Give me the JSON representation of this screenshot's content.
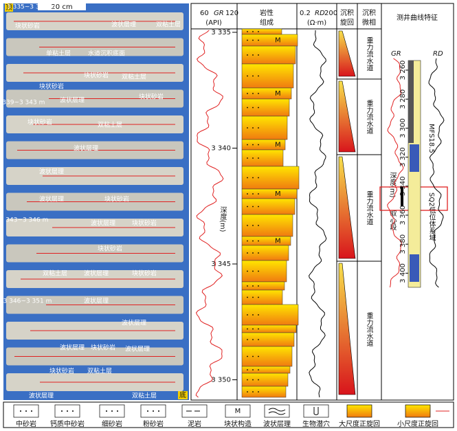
{
  "core": {
    "top": "顶",
    "bottom": "底",
    "scale": "20 cm",
    "labels": [
      "3 335~3 339 m",
      "块状砂岩",
      "波状层理",
      "双粘土层",
      "单粘土层",
      "水道沉积底面",
      "块状砂岩",
      "双粘土层",
      "块状砂岩",
      "块状砂岩",
      "波状层理",
      "3 339~3 343 m",
      "块状砂岩",
      "双粘土层",
      "波状层理",
      "波状层理",
      "波状层理",
      "块状砂岩",
      "3 343~3 346 m",
      "波状层理",
      "块状砂岩",
      "块状砂岩",
      "双粘土层",
      "波状层理",
      "块状砂岩",
      "3 346~3 351 m",
      "波状层理",
      "波状层理",
      "波状层理",
      "块状砂岩",
      "波状层理",
      "块状砂岩",
      "双粘土层",
      "波状层理",
      "双粘土层"
    ]
  },
  "gr_header": {
    "min": "60",
    "name": "GR",
    "max": "120",
    "unit": "(API)"
  },
  "depth_label": "深度(m)",
  "depth_ticks": [
    {
      "value": 3335,
      "label": "3 335"
    },
    {
      "value": 3340,
      "label": "3 340"
    },
    {
      "value": 3345,
      "label": "3 345"
    },
    {
      "value": 3350,
      "label": "3 350"
    }
  ],
  "lithology_header": [
    "岩性",
    "组成"
  ],
  "rd_header": {
    "min": "0.2",
    "name": "RD",
    "max": "200",
    "unit": "(Ω·m)"
  },
  "cycle_header": [
    "沉积",
    "旋回"
  ],
  "facies_header": [
    "沉积",
    "微相"
  ],
  "facies": [
    "重力流水道",
    "重力流水道",
    "重力流水道",
    "重力流水道"
  ],
  "log_panel": {
    "title": "测井曲线特征",
    "gr": "GR",
    "rd": "RD",
    "depth_label": "深度(m)",
    "depth_ticks": [
      {
        "value": 3260,
        "label": "3 260"
      },
      {
        "value": 3280,
        "label": "3 280"
      },
      {
        "value": 3300,
        "label": "3 300"
      },
      {
        "value": 3320,
        "label": "3 320"
      },
      {
        "value": 3340,
        "label": "3 340"
      },
      {
        "value": 3360,
        "label": "3 360"
      },
      {
        "value": 3380,
        "label": "3 380"
      },
      {
        "value": 3400,
        "label": "3 400"
      }
    ],
    "core_interval": "取心段",
    "mfs": "MFS18.5",
    "systems_tract": "SQ2低位体系域"
  },
  "legend": [
    {
      "label": "中砂岩"
    },
    {
      "label": "钙质中砂岩"
    },
    {
      "label": "细砂岩"
    },
    {
      "label": "粉砂岩"
    },
    {
      "label": "泥岩"
    },
    {
      "label": "块状构造",
      "symbol": "M"
    },
    {
      "label": "波状层理"
    },
    {
      "label": "生物潜穴"
    },
    {
      "label": "大尺度正旋回"
    },
    {
      "label": "小尺度正旋回"
    }
  ]
}
